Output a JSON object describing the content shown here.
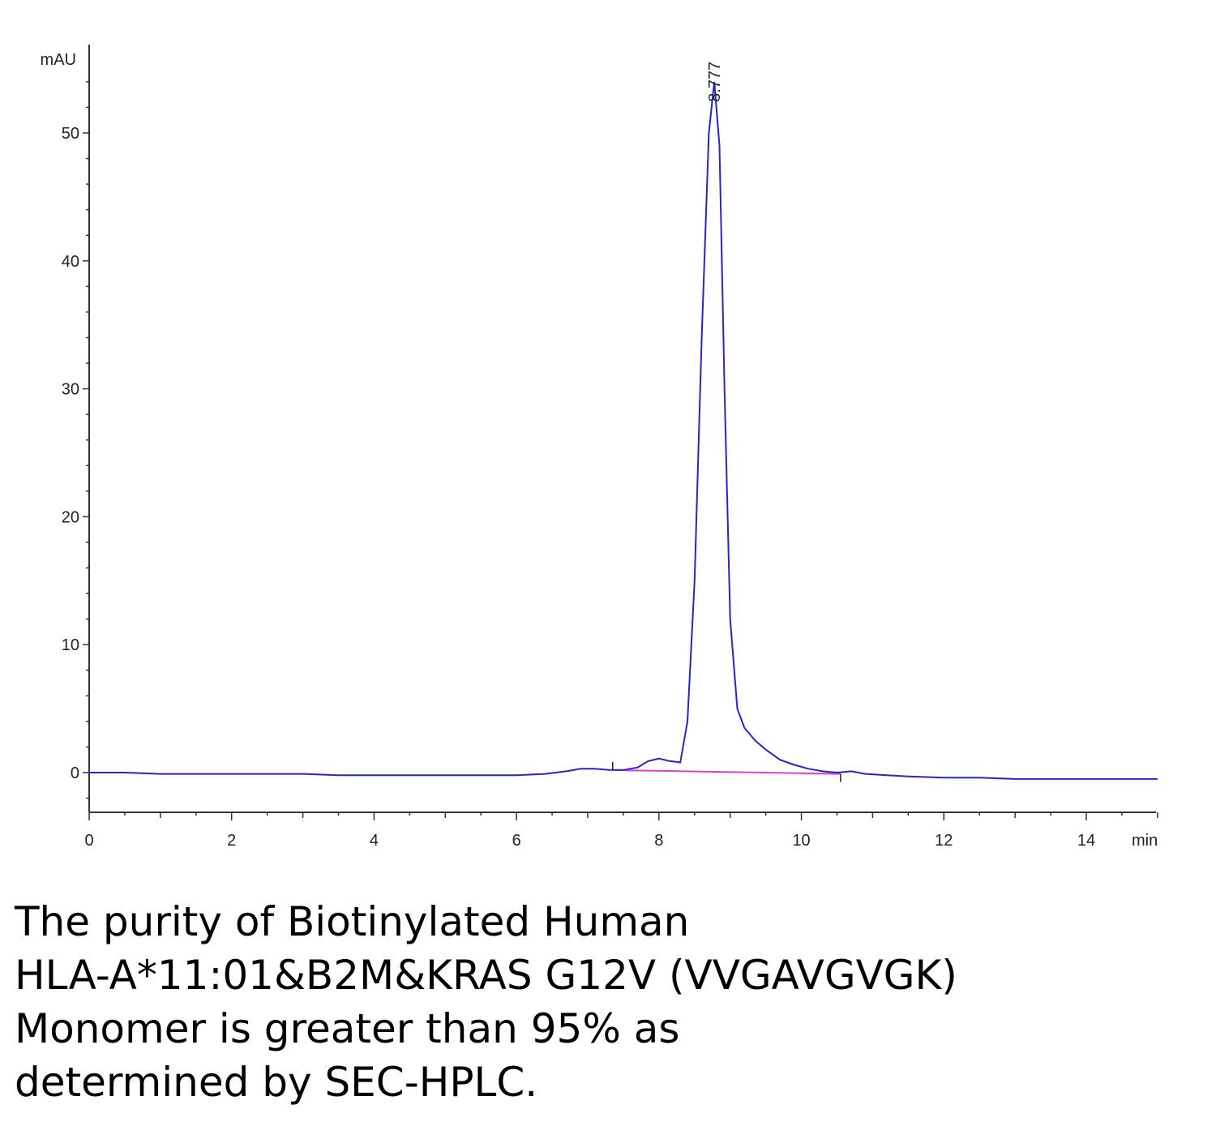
{
  "chart_data": {
    "type": "line",
    "ylabel": "mAU",
    "xlabel": "min",
    "xlim": [
      0,
      15
    ],
    "ylim": [
      -3,
      56
    ],
    "x_ticks": [
      0,
      2,
      4,
      6,
      8,
      10,
      12,
      14
    ],
    "y_ticks": [
      0,
      10,
      20,
      30,
      40,
      50
    ],
    "peak_label": "8.777",
    "peak": {
      "x": 8.777,
      "y": 54
    },
    "colors": {
      "trace": "#2525d0",
      "baseline": "#e040c8",
      "axis": "#333333"
    },
    "series": [
      {
        "values_x": [
          0,
          0.5,
          1,
          1.5,
          2,
          2.5,
          3,
          3.5,
          4,
          4.5,
          5,
          5.5,
          6,
          6.4,
          6.7,
          6.9,
          7.1,
          7.3,
          7.5,
          7.7,
          7.85,
          8.0,
          8.15,
          8.3,
          8.4,
          8.5,
          8.6,
          8.7,
          8.777,
          8.85,
          8.92,
          9.0,
          9.1,
          9.2,
          9.35,
          9.5,
          9.7,
          9.9,
          10.1,
          10.3,
          10.5,
          10.7,
          10.9,
          11.2,
          11.5,
          12,
          12.5,
          13,
          13.5,
          14,
          14.5,
          15
        ],
        "values_y": [
          0,
          0,
          -0.1,
          -0.1,
          -0.1,
          -0.1,
          -0.1,
          -0.2,
          -0.2,
          -0.2,
          -0.2,
          -0.2,
          -0.2,
          -0.1,
          0.1,
          0.3,
          0.3,
          0.2,
          0.2,
          0.4,
          0.9,
          1.1,
          0.9,
          0.8,
          4,
          15,
          34,
          50,
          54,
          49,
          30,
          12,
          5,
          3.5,
          2.5,
          1.8,
          1.0,
          0.6,
          0.3,
          0.1,
          0,
          0.1,
          -0.1,
          -0.2,
          -0.3,
          -0.4,
          -0.4,
          -0.5,
          -0.5,
          -0.5,
          -0.5,
          -0.5
        ]
      }
    ],
    "baseline_segment": {
      "x": [
        7.35,
        10.55
      ],
      "y": [
        0.2,
        -0.1
      ]
    }
  },
  "caption": [
    "The purity of Biotinylated Human",
    "HLA-A*11:01&B2M&KRAS G12V (VVGAVGVGK)",
    "Monomer is greater than 95% as",
    "determined by SEC-HPLC."
  ]
}
